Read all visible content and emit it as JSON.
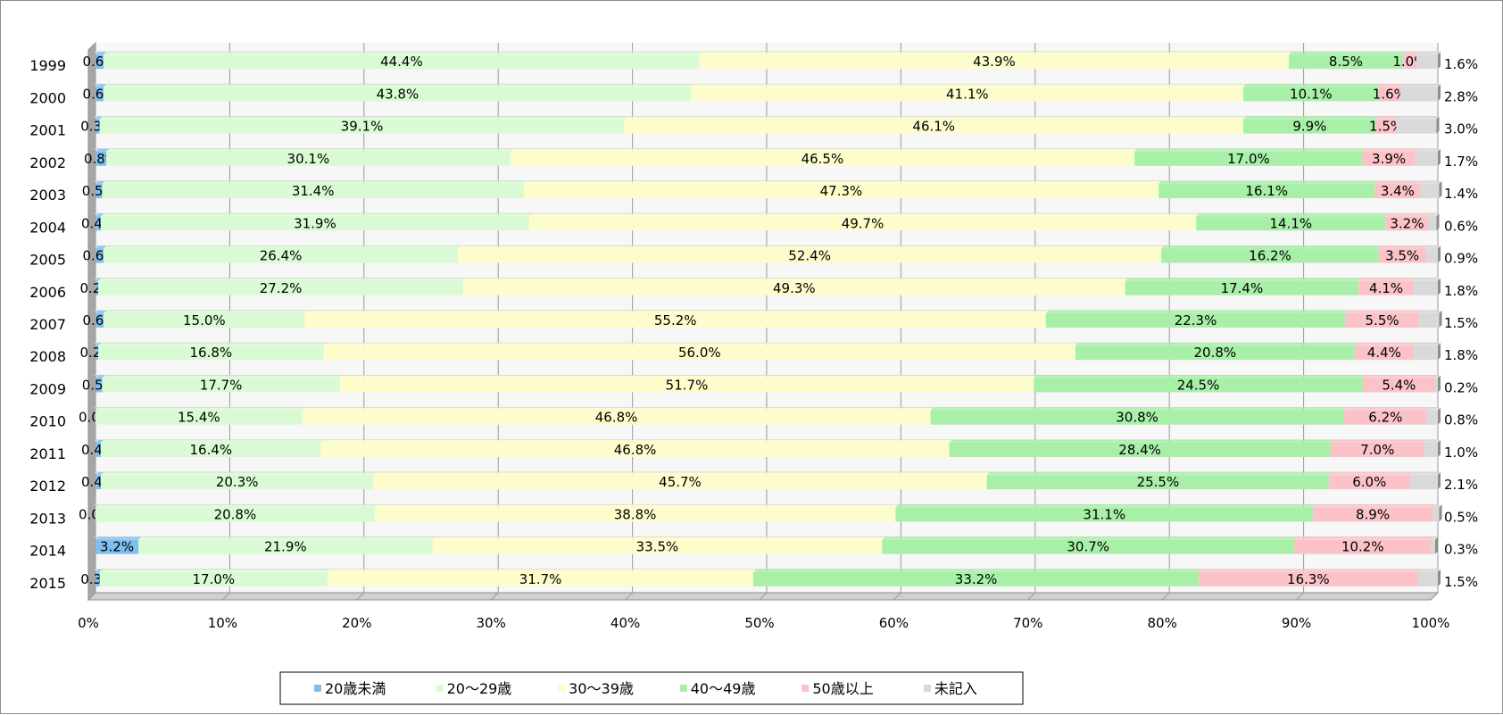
{
  "chart_data": {
    "type": "bar",
    "orientation": "horizontal",
    "stacked": "percent",
    "categories": [
      "1999",
      "2000",
      "2001",
      "2002",
      "2003",
      "2004",
      "2005",
      "2006",
      "2007",
      "2008",
      "2009",
      "2010",
      "2011",
      "2012",
      "2013",
      "2014",
      "2015"
    ],
    "series": [
      {
        "name": "20歳未満",
        "color": "#7fbfef",
        "values": [
          0.6,
          0.6,
          0.3,
          0.8,
          0.5,
          0.4,
          0.6,
          0.2,
          0.6,
          0.2,
          0.5,
          0.0,
          0.4,
          0.4,
          0.0,
          3.2,
          0.3
        ]
      },
      {
        "name": "20～29歳",
        "color": "#d9fbd3",
        "values": [
          44.4,
          43.8,
          39.1,
          30.1,
          31.4,
          31.9,
          26.4,
          27.2,
          15.0,
          16.8,
          17.7,
          15.4,
          16.4,
          20.3,
          20.8,
          21.9,
          17.0
        ]
      },
      {
        "name": "30～39歳",
        "color": "#fdfdcc",
        "values": [
          43.9,
          41.1,
          46.1,
          46.5,
          47.3,
          49.7,
          52.4,
          49.3,
          55.2,
          56.0,
          51.7,
          46.8,
          46.8,
          45.7,
          38.8,
          33.5,
          31.7
        ]
      },
      {
        "name": "40～49歳",
        "color": "#a8f0a8",
        "values": [
          8.5,
          10.1,
          9.9,
          17.0,
          16.1,
          14.1,
          16.2,
          17.4,
          22.3,
          20.8,
          24.5,
          30.8,
          28.4,
          25.5,
          31.1,
          30.7,
          33.2
        ]
      },
      {
        "name": "50歳以上",
        "color": "#fbc3c8",
        "values": [
          1.0,
          1.6,
          1.5,
          3.9,
          3.4,
          3.2,
          3.5,
          4.1,
          5.5,
          4.4,
          5.4,
          6.2,
          7.0,
          6.0,
          8.9,
          10.2,
          16.3
        ]
      },
      {
        "name": "未記入",
        "color": "#d9d9d9",
        "values": [
          1.6,
          2.8,
          3.0,
          1.7,
          1.4,
          0.6,
          0.9,
          1.8,
          1.5,
          1.8,
          0.2,
          0.8,
          1.0,
          2.1,
          0.5,
          0.3,
          1.5
        ]
      }
    ],
    "xlim": [
      0,
      100
    ],
    "xticks": [
      "0%",
      "10%",
      "20%",
      "30%",
      "40%",
      "50%",
      "60%",
      "70%",
      "80%",
      "90%",
      "100%"
    ],
    "grid": "vertical",
    "legend_position": "bottom",
    "title": "",
    "xlabel": "",
    "ylabel": ""
  }
}
